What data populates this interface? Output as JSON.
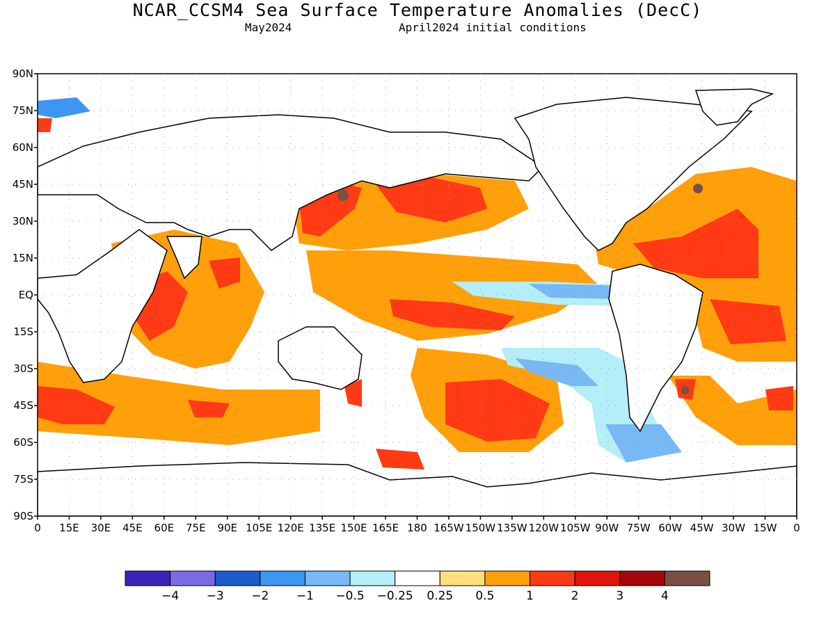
{
  "title": "NCAR_CCSM4 Sea Surface Temperature Anomalies (DecC)",
  "subtitle_left": "May2024",
  "subtitle_right": "April2024 initial conditions",
  "y_ticks": [
    "90N",
    "75N",
    "60N",
    "45N",
    "30N",
    "15N",
    "EQ",
    "15S",
    "30S",
    "45S",
    "60S",
    "75S",
    "90S"
  ],
  "x_ticks": [
    "0",
    "15E",
    "30E",
    "45E",
    "60E",
    "75E",
    "90E",
    "105E",
    "120E",
    "135E",
    "150E",
    "165E",
    "180",
    "165W",
    "150W",
    "135W",
    "120W",
    "105W",
    "90W",
    "75W",
    "60W",
    "45W",
    "30W",
    "15W",
    "0"
  ],
  "colorbar": {
    "colors": [
      "#3b24b8",
      "#7a6ae6",
      "#1a5ccc",
      "#3c96f2",
      "#78b8f4",
      "#b4eef8",
      "#ffffff",
      "#ffe07a",
      "#ffa00a",
      "#ff3a14",
      "#e0140c",
      "#a4060a",
      "#7a5046"
    ],
    "labels": [
      "-4",
      "-3",
      "-2",
      "-1",
      "-0.5",
      "-0.25",
      "0.25",
      "0.5",
      "1",
      "2",
      "3",
      "4"
    ]
  }
}
